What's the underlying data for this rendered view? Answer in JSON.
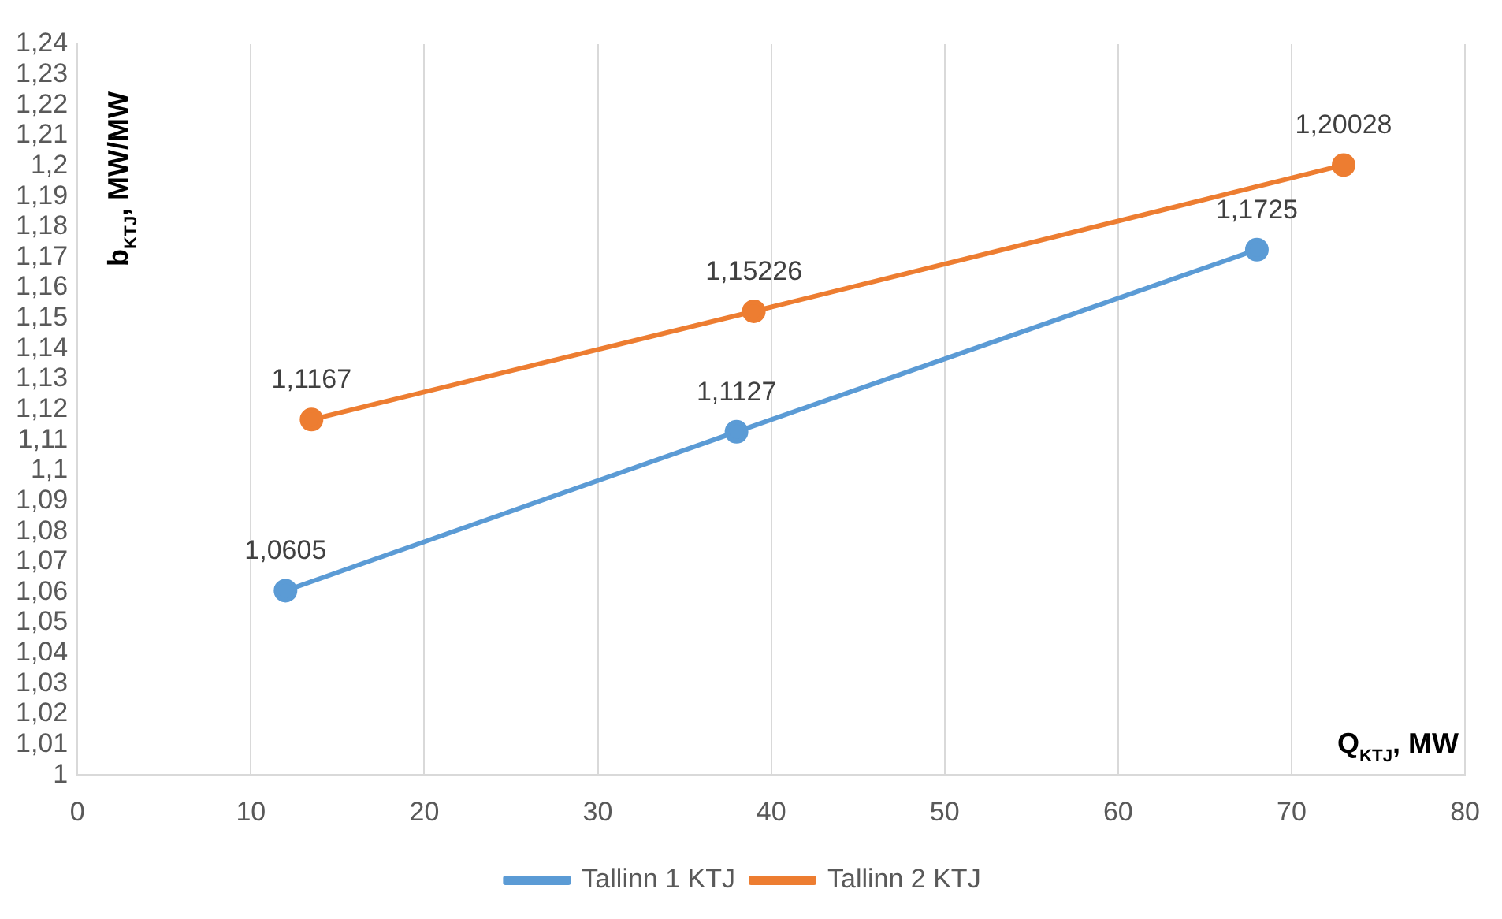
{
  "chart_data": {
    "type": "line",
    "xlabel": "Q$_{KTJ}$, MW",
    "ylabel": "b$_{KTJ}$, MW/MW",
    "series": [
      {
        "name": "Tallinn 1 KTJ",
        "color": "#5b9bd5",
        "x": [
          12,
          38,
          68
        ],
        "values": [
          1.0605,
          1.1127,
          1.1725
        ],
        "value_labels": [
          "1,0605",
          "1,1127",
          "1,1725"
        ]
      },
      {
        "name": "Tallinn 2 KTJ",
        "color": "#ed7d31",
        "x": [
          13.5,
          39,
          73
        ],
        "values": [
          1.1167,
          1.15226,
          1.20028
        ],
        "value_labels": [
          "1,1167",
          "1,15226",
          "1,20028"
        ]
      }
    ],
    "xlim": [
      0,
      80
    ],
    "xticks": [
      0,
      10,
      20,
      30,
      40,
      50,
      60,
      70,
      80
    ],
    "ylim": [
      1,
      1.24
    ],
    "yticks": [
      {
        "value": 1,
        "label": "1"
      },
      {
        "value": 1.01,
        "label": "1,01"
      },
      {
        "value": 1.02,
        "label": "1,02"
      },
      {
        "value": 1.03,
        "label": "1,03"
      },
      {
        "value": 1.04,
        "label": "1,04"
      },
      {
        "value": 1.05,
        "label": "1,05"
      },
      {
        "value": 1.06,
        "label": "1,06"
      },
      {
        "value": 1.07,
        "label": "1,07"
      },
      {
        "value": 1.08,
        "label": "1,08"
      },
      {
        "value": 1.09,
        "label": "1,09"
      },
      {
        "value": 1.1,
        "label": "1,1"
      },
      {
        "value": 1.11,
        "label": "1,11"
      },
      {
        "value": 1.12,
        "label": "1,12"
      },
      {
        "value": 1.13,
        "label": "1,13"
      },
      {
        "value": 1.14,
        "label": "1,14"
      },
      {
        "value": 1.15,
        "label": "1,15"
      },
      {
        "value": 1.16,
        "label": "1,16"
      },
      {
        "value": 1.17,
        "label": "1,17"
      },
      {
        "value": 1.18,
        "label": "1,18"
      },
      {
        "value": 1.19,
        "label": "1,19"
      },
      {
        "value": 1.2,
        "label": "1,2"
      },
      {
        "value": 1.21,
        "label": "1,21"
      },
      {
        "value": 1.22,
        "label": "1,22"
      },
      {
        "value": 1.23,
        "label": "1,23"
      },
      {
        "value": 1.24,
        "label": "1,24"
      }
    ],
    "grid": "x",
    "legend": "bottom",
    "marker": "circle",
    "line_style": "solid"
  }
}
